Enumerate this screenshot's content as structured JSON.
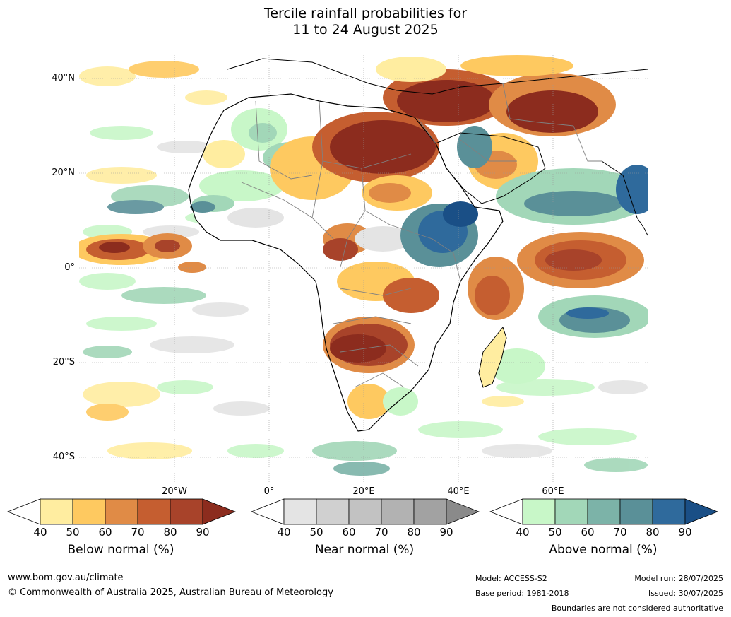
{
  "title_line1": "Tercile rainfall probabilities for",
  "title_line2": "11 to 24 August 2025",
  "lat_labels": [
    "40°N",
    "20°N",
    "0°",
    "20°S",
    "40°S"
  ],
  "lon_labels": [
    "20°W",
    "0°",
    "20°E",
    "40°E",
    "60°E"
  ],
  "legends": [
    {
      "title": "Below normal (%)",
      "ticks": [
        "40",
        "50",
        "60",
        "70",
        "80",
        "90"
      ],
      "colors": [
        "#ffeda0",
        "#fec960",
        "#e08b46",
        "#c55e30",
        "#a8432a",
        "#8c2c1e"
      ]
    },
    {
      "title": "Near normal (%)",
      "ticks": [
        "40",
        "50",
        "60",
        "70",
        "80",
        "90"
      ],
      "colors": [
        "#e4e4e4",
        "#d0d0d0",
        "#c2c2c2",
        "#b2b2b2",
        "#a2a2a2",
        "#8a8a8a"
      ]
    },
    {
      "title": "Above normal (%)",
      "ticks": [
        "40",
        "50",
        "60",
        "70",
        "80",
        "90"
      ],
      "colors": [
        "#c8f7c8",
        "#a2d7b8",
        "#7cb3a8",
        "#5a9098",
        "#2f6a9c",
        "#1a4f86"
      ]
    }
  ],
  "footer": {
    "website": "www.bom.gov.au/climate",
    "copyright": "© Commonwealth of Australia 2025, Australian Bureau of Meteorology",
    "model": "Model: ACCESS-S2",
    "base_period": "Base period: 1981-2018",
    "model_run": "Model run: 28/07/2025",
    "issued": "Issued: 30/07/2025",
    "disclaimer": "Boundaries are not considered authoritative"
  },
  "map_colors": {
    "ocean_base": "#ffffff",
    "coastline": "#000000",
    "borders": "#808080",
    "gridline": "#9a9a9a"
  }
}
